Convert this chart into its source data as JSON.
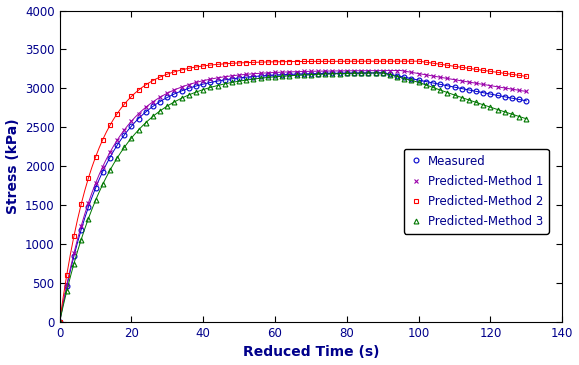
{
  "title": "",
  "xlabel": "Reduced Time (s)",
  "ylabel": "Stress (kPa)",
  "xlim": [
    0,
    140
  ],
  "ylim": [
    0,
    4000
  ],
  "xticks": [
    0,
    20,
    40,
    60,
    80,
    100,
    120,
    140
  ],
  "yticks": [
    0,
    500,
    1000,
    1500,
    2000,
    2500,
    3000,
    3500,
    4000
  ],
  "legend_labels": [
    "Measured",
    "Predicted-Method 1",
    "Predicted-Method 2",
    "Predicted-Method 3"
  ],
  "colors": {
    "measured": "#0000CC",
    "method1": "#9900AA",
    "method2": "#FF0000",
    "method3": "#007700"
  },
  "markers": {
    "measured": "o",
    "method1": "x",
    "method2": "s",
    "method3": "^"
  },
  "background_color": "#FFFFFF",
  "label_color": "#00008B",
  "tick_color": "#000000",
  "figsize": [
    5.79,
    3.65
  ],
  "dpi": 100
}
